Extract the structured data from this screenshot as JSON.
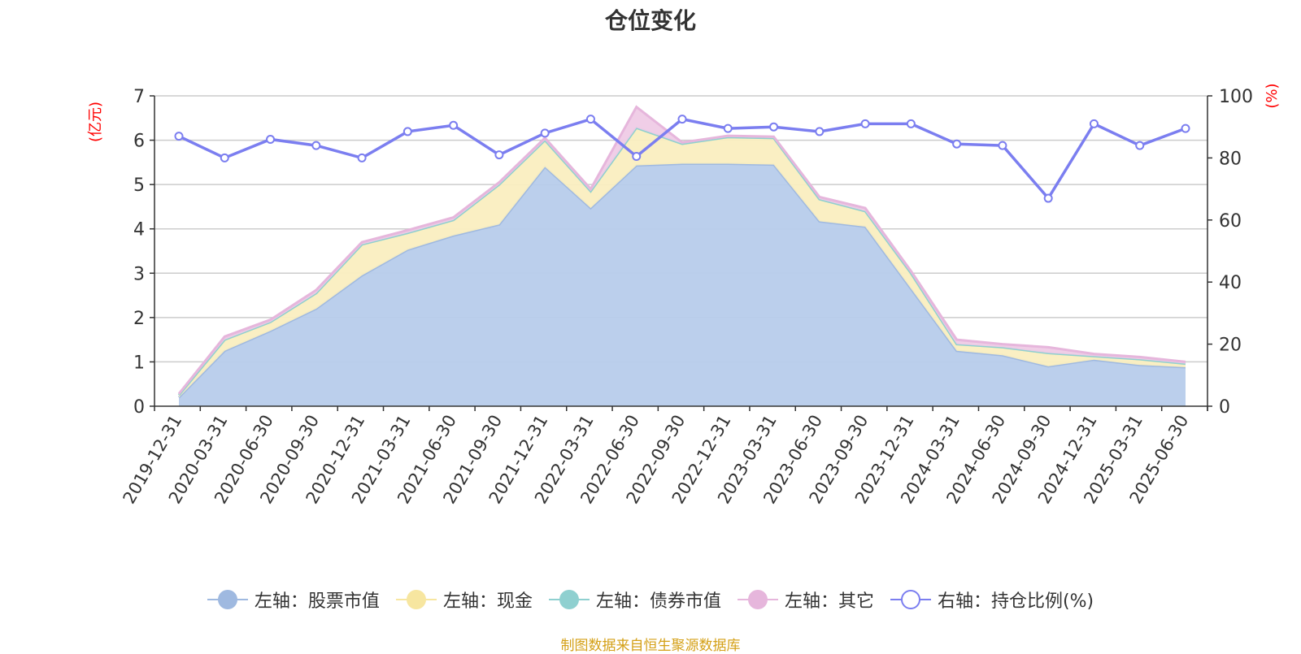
{
  "title": "仓位变化",
  "source_note": "制图数据来自恒生聚源数据库",
  "colors": {
    "stock": "#9fb9e0",
    "stock_fill": "#b7cceb",
    "cash": "#f7e6a0",
    "cash_fill": "#faeec0",
    "bond": "#8fd0d0",
    "other": "#e6b6dc",
    "other_fill": "#efcbe6",
    "ratio": "#7b7ef0",
    "axis": "#333333",
    "grid": "#cccccc",
    "unit_red": "#ff0000"
  },
  "legend": [
    {
      "key": "stock",
      "label": "左轴：股票市值",
      "icon": "filled-circle"
    },
    {
      "key": "cash",
      "label": "左轴：现金",
      "icon": "filled-circle"
    },
    {
      "key": "bond",
      "label": "左轴：债券市值",
      "icon": "filled-circle"
    },
    {
      "key": "other",
      "label": "左轴：其它",
      "icon": "filled-circle"
    },
    {
      "key": "ratio",
      "label": "右轴：持仓比例(%)",
      "icon": "hollow-circle"
    }
  ],
  "chart_data": {
    "type": "area",
    "title": "仓位变化",
    "left_axis": {
      "unit_label": "(亿元)",
      "range": [
        0,
        7
      ],
      "ticks": [
        0,
        1,
        2,
        3,
        4,
        5,
        6,
        7
      ]
    },
    "right_axis": {
      "unit_label": "(%)",
      "range": [
        0,
        100
      ],
      "ticks": [
        0,
        20,
        40,
        60,
        80,
        100
      ]
    },
    "grid": true,
    "legend_position": "bottom",
    "x": [
      "2019-12-31",
      "2020-03-31",
      "2020-06-30",
      "2020-09-30",
      "2020-12-31",
      "2021-03-31",
      "2021-06-30",
      "2021-09-30",
      "2021-12-31",
      "2022-03-31",
      "2022-06-30",
      "2022-09-30",
      "2022-12-31",
      "2023-03-31",
      "2023-06-30",
      "2023-09-30",
      "2023-12-31",
      "2024-03-31",
      "2024-06-30",
      "2024-09-30",
      "2024-12-31",
      "2025-03-31",
      "2025-06-30"
    ],
    "series": [
      {
        "name": "左轴：股票市值",
        "axis": "left",
        "stack": true,
        "values": [
          0.2,
          1.25,
          1.7,
          2.2,
          2.95,
          3.53,
          3.85,
          4.1,
          5.4,
          4.47,
          5.43,
          5.47,
          5.47,
          5.45,
          4.17,
          4.05,
          2.65,
          1.25,
          1.15,
          0.9,
          1.05,
          0.93,
          0.88
        ]
      },
      {
        "name": "左轴：现金",
        "axis": "left",
        "stack": true,
        "values": [
          0.05,
          0.25,
          0.2,
          0.35,
          0.7,
          0.38,
          0.35,
          0.9,
          0.6,
          0.38,
          0.85,
          0.45,
          0.6,
          0.6,
          0.5,
          0.35,
          0.35,
          0.15,
          0.18,
          0.3,
          0.08,
          0.13,
          0.08
        ]
      },
      {
        "name": "左轴：债券市值",
        "axis": "left",
        "stack": true,
        "values": [
          0,
          0,
          0,
          0,
          0,
          0,
          0,
          0,
          0,
          0,
          0,
          0,
          0,
          0,
          0,
          0,
          0,
          0,
          0,
          0,
          0,
          0,
          0
        ]
      },
      {
        "name": "左轴：其它",
        "axis": "left",
        "stack": true,
        "values": [
          0.03,
          0.07,
          0.05,
          0.07,
          0.05,
          0.06,
          0.06,
          0.05,
          0.05,
          0.05,
          0.47,
          0.03,
          0.03,
          0.03,
          0.05,
          0.07,
          0.05,
          0.1,
          0.07,
          0.13,
          0.05,
          0.05,
          0.04
        ]
      },
      {
        "name": "右轴：持仓比例(%)",
        "axis": "right",
        "type": "line",
        "values": [
          87,
          80,
          86,
          84,
          80,
          88.5,
          90.5,
          81,
          88,
          92.5,
          80.5,
          92.5,
          89.5,
          90,
          88.5,
          91,
          91,
          84.5,
          84,
          67,
          91,
          84,
          89.5
        ]
      }
    ]
  }
}
